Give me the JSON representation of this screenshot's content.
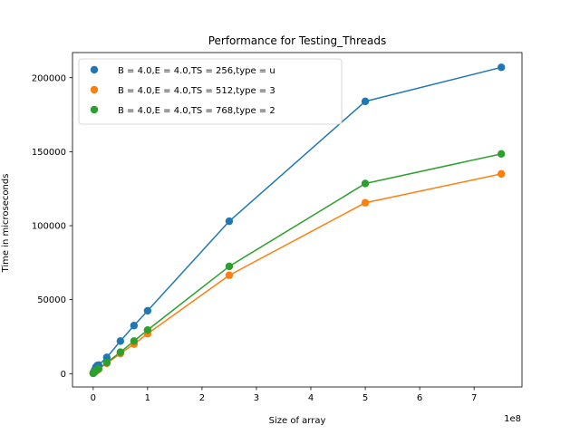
{
  "chart_data": {
    "type": "line",
    "title": "Performance for Testing_Threads",
    "xlabel": "Size of array",
    "ylabel": "Time in microseconds",
    "x_offset_label": "1e8",
    "xlim": [
      -0.38,
      7.88
    ],
    "ylim": [
      -9000,
      217000
    ],
    "xticks": [
      0,
      1,
      2,
      3,
      4,
      5,
      6,
      7
    ],
    "xtick_labels": [
      "0",
      "1",
      "2",
      "3",
      "4",
      "5",
      "6",
      "7"
    ],
    "yticks": [
      0,
      50000,
      100000,
      150000,
      200000
    ],
    "ytick_labels": [
      "0",
      "50000",
      "100000",
      "150000",
      "200000"
    ],
    "grid": false,
    "legend_position": "top-left",
    "x": [
      0.001,
      0.005,
      0.01,
      0.025,
      0.05,
      0.075,
      0.1,
      0.25,
      0.5,
      0.75,
      1.0,
      2.5,
      5.0,
      7.5
    ],
    "series": [
      {
        "name": "B = 4.0,E = 4.0,TS = 256,type = u",
        "color": "#1f77b4",
        "values": [
          300,
          650,
          1100,
          2300,
          4400,
          5500,
          5800,
          11000,
          22000,
          32500,
          42500,
          103000,
          184000,
          207000
        ]
      },
      {
        "name": "B = 4.0,E = 4.0,TS = 512,type = 3",
        "color": "#ff7f0e",
        "values": [
          200,
          400,
          600,
          1000,
          1800,
          2500,
          3000,
          7000,
          13500,
          20000,
          27000,
          66500,
          115500,
          135000
        ]
      },
      {
        "name": "B = 4.0,E = 4.0,TS = 768,type = 2",
        "color": "#2ca02c",
        "values": [
          220,
          450,
          700,
          1100,
          2000,
          2700,
          3200,
          7500,
          14500,
          22000,
          29500,
          72500,
          128500,
          148500
        ]
      }
    ]
  }
}
